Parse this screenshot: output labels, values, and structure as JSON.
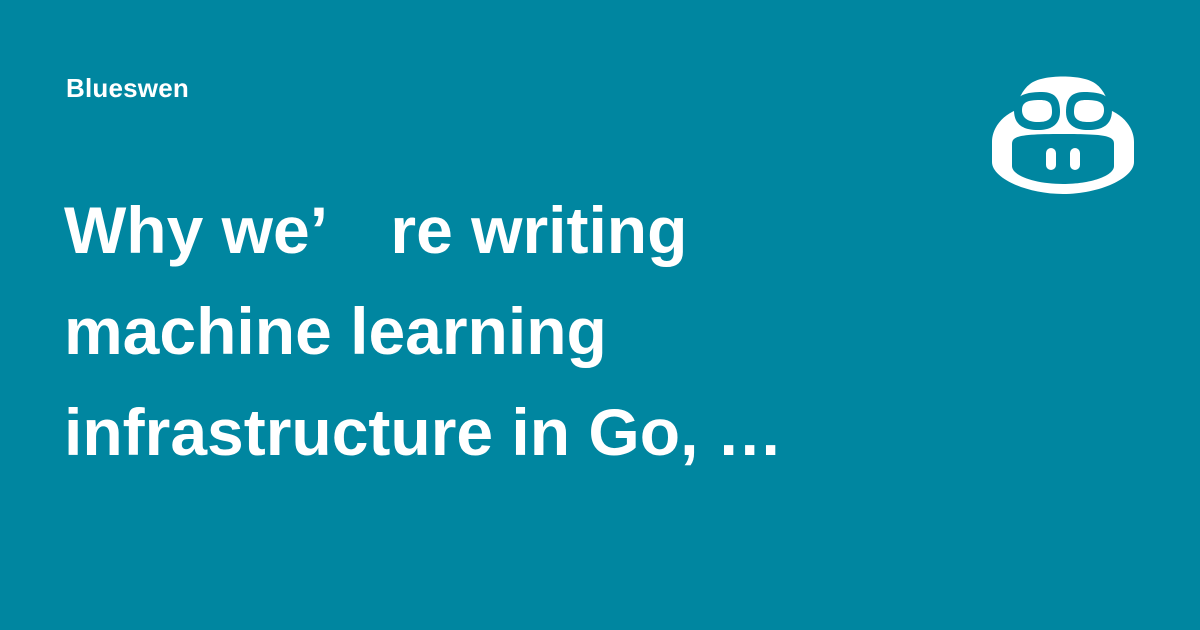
{
  "author": "Blueswen",
  "title": "Why we’　re writing\nmachine learning\ninfrastructure in Go, …",
  "logo": {
    "icon": "copilot-mascot-icon",
    "color": "#ffffff"
  },
  "colors": {
    "background": "#0086a0",
    "text": "#ffffff"
  }
}
